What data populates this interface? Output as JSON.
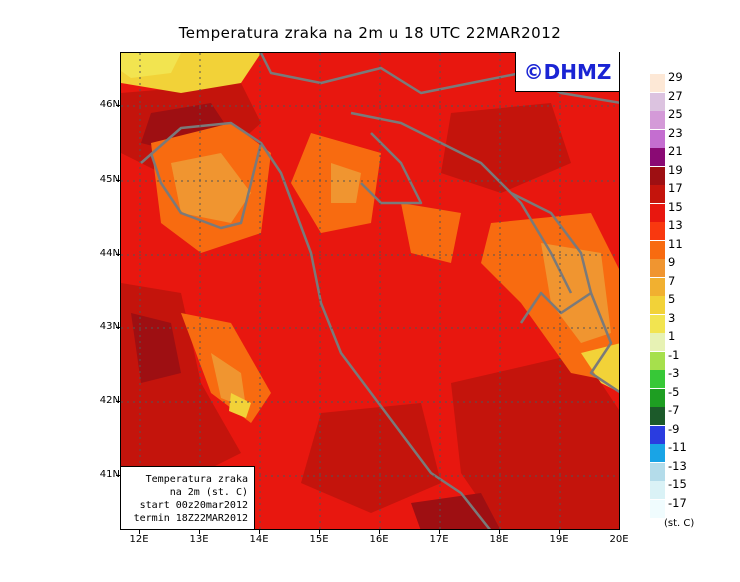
{
  "title": "Temperatura zraka na 2m u 18 UTC 22MAR2012",
  "logo": "©DHMZ",
  "infobox": {
    "line1": "Temperatura zraka",
    "line2": "na 2m (st. C)",
    "line3": "start 00z20mar2012",
    "line4": "termin 18Z22MAR2012"
  },
  "axes": {
    "lat_labels": [
      "46N",
      "45N",
      "44N",
      "43N",
      "42N",
      "41N"
    ],
    "lon_labels": [
      "12E",
      "13E",
      "14E",
      "15E",
      "16E",
      "17E",
      "18E",
      "19E",
      "20E"
    ]
  },
  "legend": {
    "unit": "(st. C)",
    "labels": [
      "29",
      "27",
      "25",
      "23",
      "21",
      "19",
      "17",
      "15",
      "13",
      "11",
      "9",
      "7",
      "5",
      "3",
      "1",
      "-1",
      "-3",
      "-5",
      "-7",
      "-9",
      "-11",
      "-13",
      "-15",
      "-17"
    ],
    "colors": [
      "#fde8d6",
      "#dcc3e0",
      "#d49ad8",
      "#c46ed0",
      "#8a0a74",
      "#9e0f12",
      "#c4140c",
      "#e8170f",
      "#f9380f",
      "#f86b10",
      "#f09530",
      "#f1b030",
      "#f2d238",
      "#f2e450",
      "#e7f2b4",
      "#a6e04c",
      "#37c837",
      "#1e9e22",
      "#1c5a2a",
      "#2a3ce0",
      "#19a4e6",
      "#b4dcea",
      "#daf2f6",
      "#f0fcfe"
    ]
  },
  "map": {
    "base_color": "#e8170f"
  }
}
